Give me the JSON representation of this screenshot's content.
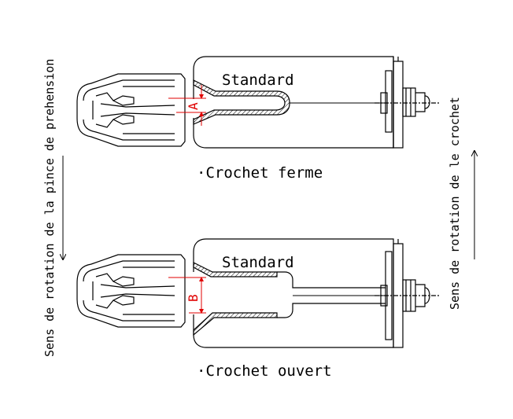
{
  "labels": {
    "standard_top": "Standard",
    "standard_bottom": "Standard",
    "crochet_ferme": "·Crochet ferme",
    "crochet_ouvert": "·Crochet ouvert",
    "dim_a": "A",
    "dim_b": "B",
    "left_vertical": "Sens de rotation de la pince de prehension",
    "right_vertical": "Sens de rotation de le crochet"
  },
  "colors": {
    "line": "#000000",
    "dimension": "#e00000"
  }
}
